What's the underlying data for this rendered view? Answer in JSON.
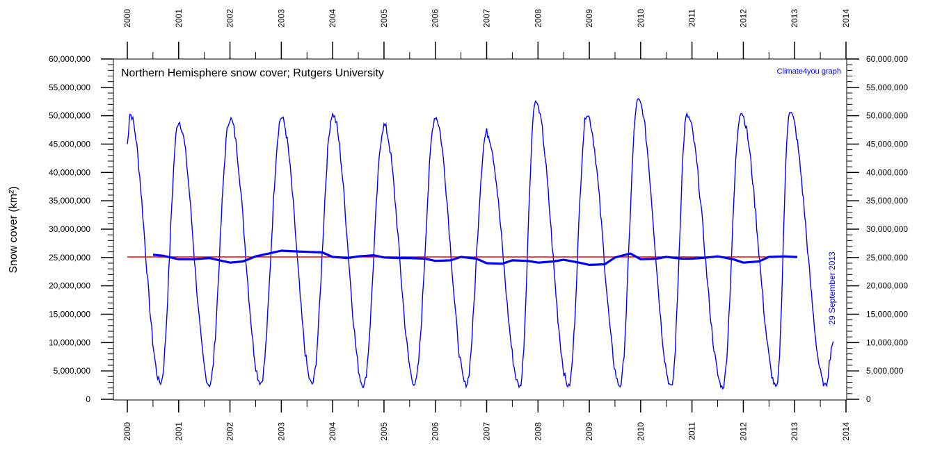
{
  "chart_data": {
    "type": "line",
    "title": "Northern Hemisphere snow cover; Rutgers University",
    "credit": "Climate4you graph",
    "date_annotation": "29 September 2013",
    "ylabel": "Snow cover (km²)",
    "xlabel": "",
    "xlim": [
      2000,
      2014
    ],
    "ylim": [
      0,
      60000000
    ],
    "x_ticks": [
      "2000",
      "2001",
      "2002",
      "2003",
      "2004",
      "2005",
      "2006",
      "2007",
      "2008",
      "2009",
      "2010",
      "2011",
      "2012",
      "2013",
      "2014"
    ],
    "y_ticks": [
      "0",
      "5,000,000",
      "10,000,000",
      "15,000,000",
      "20,000,000",
      "25,000,000",
      "30,000,000",
      "35,000,000",
      "40,000,000",
      "45,000,000",
      "50,000,000",
      "55,000,000",
      "60,000,000"
    ],
    "grid": false,
    "colors": {
      "weekly": "#0000ff",
      "running_mean": "#0000ff",
      "average": "#ff0000"
    },
    "series": [
      {
        "name": "",
        "style": "thin",
        "peaks": [
          {
            "x": 2000.05,
            "y": 50300000
          },
          {
            "x": 2001.0,
            "y": 49000000
          },
          {
            "x": 2002.0,
            "y": 49500000
          },
          {
            "x": 2003.0,
            "y": 49700000
          },
          {
            "x": 2004.0,
            "y": 50200000
          },
          {
            "x": 2005.0,
            "y": 48200000
          },
          {
            "x": 2006.0,
            "y": 49800000
          },
          {
            "x": 2007.0,
            "y": 47000000
          },
          {
            "x": 2007.95,
            "y": 52500000
          },
          {
            "x": 2008.95,
            "y": 50300000
          },
          {
            "x": 2009.95,
            "y": 53000000
          },
          {
            "x": 2010.9,
            "y": 50000000
          },
          {
            "x": 2011.95,
            "y": 50600000
          },
          {
            "x": 2012.9,
            "y": 50800000
          }
        ],
        "troughs": [
          {
            "x": 2000.65,
            "y": 2900000
          },
          {
            "x": 2001.6,
            "y": 2500000
          },
          {
            "x": 2002.6,
            "y": 2900000
          },
          {
            "x": 2003.6,
            "y": 2700000
          },
          {
            "x": 2004.6,
            "y": 2400000
          },
          {
            "x": 2005.6,
            "y": 2700000
          },
          {
            "x": 2006.6,
            "y": 2600000
          },
          {
            "x": 2007.65,
            "y": 2300000
          },
          {
            "x": 2008.6,
            "y": 2300000
          },
          {
            "x": 2009.6,
            "y": 2400000
          },
          {
            "x": 2010.6,
            "y": 2200000
          },
          {
            "x": 2011.6,
            "y": 2100000
          },
          {
            "x": 2012.65,
            "y": 2100000
          },
          {
            "x": 2013.6,
            "y": 2400000
          }
        ],
        "end": {
          "x": 2013.75,
          "y": 10200000
        }
      },
      {
        "name": "",
        "style": "thick",
        "x": [
          2000.5,
          2000.7,
          2001.0,
          2001.3,
          2001.6,
          2001.8,
          2002.0,
          2002.25,
          2002.5,
          2002.8,
          2003.0,
          2003.25,
          2003.5,
          2003.8,
          2004.0,
          2004.3,
          2004.5,
          2004.8,
          2005.0,
          2005.3,
          2005.5,
          2005.8,
          2006.0,
          2006.3,
          2006.5,
          2006.8,
          2007.0,
          2007.3,
          2007.5,
          2007.8,
          2008.0,
          2008.3,
          2008.5,
          2008.8,
          2009.0,
          2009.3,
          2009.5,
          2009.8,
          2010.0,
          2010.3,
          2010.5,
          2010.8,
          2011.0,
          2011.3,
          2011.5,
          2011.8,
          2012.0,
          2012.3,
          2012.5,
          2012.8,
          2013.0,
          2013.05
        ],
        "y": [
          25500000,
          25300000,
          24700000,
          24700000,
          24900000,
          24500000,
          24100000,
          24300000,
          25200000,
          25800000,
          26200000,
          26100000,
          26000000,
          25900000,
          25100000,
          24900000,
          25200000,
          25400000,
          25000000,
          24900000,
          24900000,
          24800000,
          24400000,
          24500000,
          25100000,
          24800000,
          24000000,
          23900000,
          24500000,
          24400000,
          24100000,
          24300000,
          24600000,
          24100000,
          23700000,
          23800000,
          25000000,
          25700000,
          24700000,
          24800000,
          25100000,
          24800000,
          24800000,
          25000000,
          25200000,
          24700000,
          24100000,
          24300000,
          25100000,
          25200000,
          25100000,
          25100000
        ]
      },
      {
        "name": "",
        "style": "average",
        "x": [
          2000.0,
          2013.05
        ],
        "y": [
          25100000,
          25100000
        ]
      }
    ]
  }
}
